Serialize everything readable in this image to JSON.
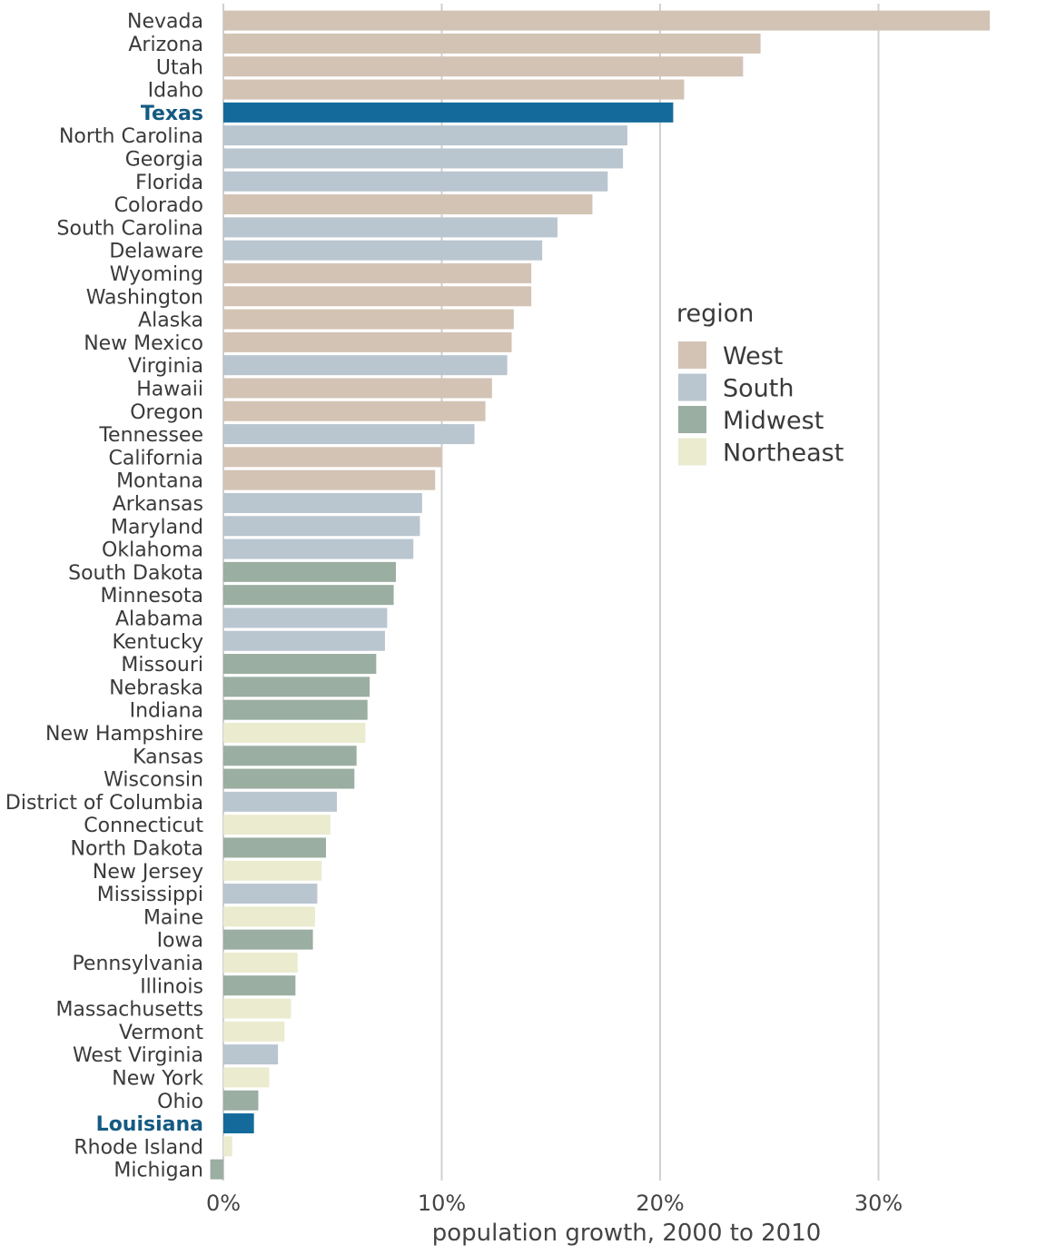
{
  "chart_data": {
    "type": "bar",
    "orientation": "horizontal",
    "xlabel": "population growth, 2000 to 2010",
    "ylabel": "",
    "xlim": [
      -0.6,
      35.5
    ],
    "ticks": [
      {
        "value": 0,
        "label": "0%"
      },
      {
        "value": 10,
        "label": "10%"
      },
      {
        "value": 20,
        "label": "20%"
      },
      {
        "value": 30,
        "label": "30%"
      }
    ],
    "grid": true,
    "legend": {
      "title": "region",
      "position": "right",
      "items": [
        {
          "region": "West",
          "label": "West"
        },
        {
          "region": "South",
          "label": "South"
        },
        {
          "region": "Midwest",
          "label": "Midwest"
        },
        {
          "region": "Northeast",
          "label": "Northeast"
        }
      ]
    },
    "colors": {
      "West": "#d3c3b4",
      "South": "#b9c5cf",
      "Midwest": "#9aaea1",
      "Northeast": "#ebebd0",
      "highlight": "#146b9b",
      "highlight_label": "#145a82",
      "grid": "#d0d0d0"
    },
    "bars": [
      {
        "state": "Nevada",
        "value": 35.1,
        "region": "West",
        "highlight": false
      },
      {
        "state": "Arizona",
        "value": 24.6,
        "region": "West",
        "highlight": false
      },
      {
        "state": "Utah",
        "value": 23.8,
        "region": "West",
        "highlight": false
      },
      {
        "state": "Idaho",
        "value": 21.1,
        "region": "West",
        "highlight": false
      },
      {
        "state": "Texas",
        "value": 20.6,
        "region": "South",
        "highlight": true
      },
      {
        "state": "North Carolina",
        "value": 18.5,
        "region": "South",
        "highlight": false
      },
      {
        "state": "Georgia",
        "value": 18.3,
        "region": "South",
        "highlight": false
      },
      {
        "state": "Florida",
        "value": 17.6,
        "region": "South",
        "highlight": false
      },
      {
        "state": "Colorado",
        "value": 16.9,
        "region": "West",
        "highlight": false
      },
      {
        "state": "South Carolina",
        "value": 15.3,
        "region": "South",
        "highlight": false
      },
      {
        "state": "Delaware",
        "value": 14.6,
        "region": "South",
        "highlight": false
      },
      {
        "state": "Wyoming",
        "value": 14.1,
        "region": "West",
        "highlight": false
      },
      {
        "state": "Washington",
        "value": 14.1,
        "region": "West",
        "highlight": false
      },
      {
        "state": "Alaska",
        "value": 13.3,
        "region": "West",
        "highlight": false
      },
      {
        "state": "New Mexico",
        "value": 13.2,
        "region": "West",
        "highlight": false
      },
      {
        "state": "Virginia",
        "value": 13.0,
        "region": "South",
        "highlight": false
      },
      {
        "state": "Hawaii",
        "value": 12.3,
        "region": "West",
        "highlight": false
      },
      {
        "state": "Oregon",
        "value": 12.0,
        "region": "West",
        "highlight": false
      },
      {
        "state": "Tennessee",
        "value": 11.5,
        "region": "South",
        "highlight": false
      },
      {
        "state": "California",
        "value": 10.0,
        "region": "West",
        "highlight": false
      },
      {
        "state": "Montana",
        "value": 9.7,
        "region": "West",
        "highlight": false
      },
      {
        "state": "Arkansas",
        "value": 9.1,
        "region": "South",
        "highlight": false
      },
      {
        "state": "Maryland",
        "value": 9.0,
        "region": "South",
        "highlight": false
      },
      {
        "state": "Oklahoma",
        "value": 8.7,
        "region": "South",
        "highlight": false
      },
      {
        "state": "South Dakota",
        "value": 7.9,
        "region": "Midwest",
        "highlight": false
      },
      {
        "state": "Minnesota",
        "value": 7.8,
        "region": "Midwest",
        "highlight": false
      },
      {
        "state": "Alabama",
        "value": 7.5,
        "region": "South",
        "highlight": false
      },
      {
        "state": "Kentucky",
        "value": 7.4,
        "region": "South",
        "highlight": false
      },
      {
        "state": "Missouri",
        "value": 7.0,
        "region": "Midwest",
        "highlight": false
      },
      {
        "state": "Nebraska",
        "value": 6.7,
        "region": "Midwest",
        "highlight": false
      },
      {
        "state": "Indiana",
        "value": 6.6,
        "region": "Midwest",
        "highlight": false
      },
      {
        "state": "New Hampshire",
        "value": 6.5,
        "region": "Northeast",
        "highlight": false
      },
      {
        "state": "Kansas",
        "value": 6.1,
        "region": "Midwest",
        "highlight": false
      },
      {
        "state": "Wisconsin",
        "value": 6.0,
        "region": "Midwest",
        "highlight": false
      },
      {
        "state": "District of Columbia",
        "value": 5.2,
        "region": "South",
        "highlight": false
      },
      {
        "state": "Connecticut",
        "value": 4.9,
        "region": "Northeast",
        "highlight": false
      },
      {
        "state": "North Dakota",
        "value": 4.7,
        "region": "Midwest",
        "highlight": false
      },
      {
        "state": "New Jersey",
        "value": 4.5,
        "region": "Northeast",
        "highlight": false
      },
      {
        "state": "Mississippi",
        "value": 4.3,
        "region": "South",
        "highlight": false
      },
      {
        "state": "Maine",
        "value": 4.2,
        "region": "Northeast",
        "highlight": false
      },
      {
        "state": "Iowa",
        "value": 4.1,
        "region": "Midwest",
        "highlight": false
      },
      {
        "state": "Pennsylvania",
        "value": 3.4,
        "region": "Northeast",
        "highlight": false
      },
      {
        "state": "Illinois",
        "value": 3.3,
        "region": "Midwest",
        "highlight": false
      },
      {
        "state": "Massachusetts",
        "value": 3.1,
        "region": "Northeast",
        "highlight": false
      },
      {
        "state": "Vermont",
        "value": 2.8,
        "region": "Northeast",
        "highlight": false
      },
      {
        "state": "West Virginia",
        "value": 2.5,
        "region": "South",
        "highlight": false
      },
      {
        "state": "New York",
        "value": 2.1,
        "region": "Northeast",
        "highlight": false
      },
      {
        "state": "Ohio",
        "value": 1.6,
        "region": "Midwest",
        "highlight": false
      },
      {
        "state": "Louisiana",
        "value": 1.4,
        "region": "South",
        "highlight": true
      },
      {
        "state": "Rhode Island",
        "value": 0.4,
        "region": "Northeast",
        "highlight": false
      },
      {
        "state": "Michigan",
        "value": -0.6,
        "region": "Midwest",
        "highlight": false
      }
    ]
  }
}
